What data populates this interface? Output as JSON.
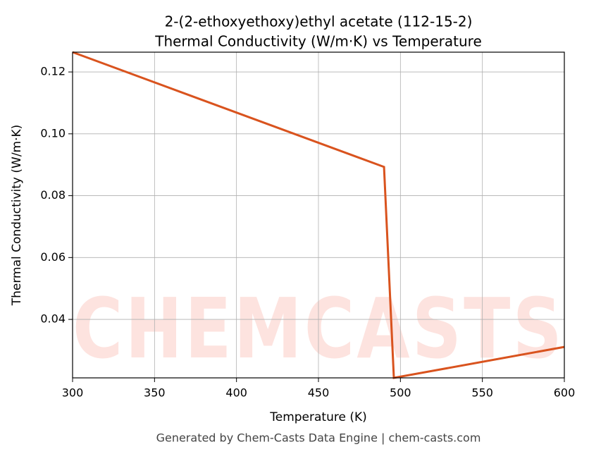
{
  "chart_data": {
    "type": "line",
    "title": "2-(2-ethoxyethoxy)ethyl acetate (112-15-2)",
    "subtitle": "Thermal Conductivity (W/m·K) vs Temperature",
    "x_label": "Temperature (K)",
    "y_label": "Thermal Conductivity (W/m·K)",
    "watermark": "CHEMCASTS",
    "footer": "Generated by Chem-Casts Data Engine | chem-casts.com",
    "x": [
      300,
      490,
      496,
      600
    ],
    "series": [
      {
        "name": "Thermal Conductivity",
        "color": "#d9531e",
        "values": [
          0.1264,
          0.0893,
          0.0211,
          0.0311
        ]
      }
    ],
    "xlim": [
      300,
      600
    ],
    "xticks": [
      300,
      350,
      400,
      450,
      500,
      550,
      600
    ],
    "ylim": [
      0.0211,
      0.1264
    ],
    "yticks": [
      0.04,
      0.06,
      0.08,
      {
        "value": 0.1,
        "label": "0.10"
      },
      0.12
    ],
    "grid": true
  }
}
